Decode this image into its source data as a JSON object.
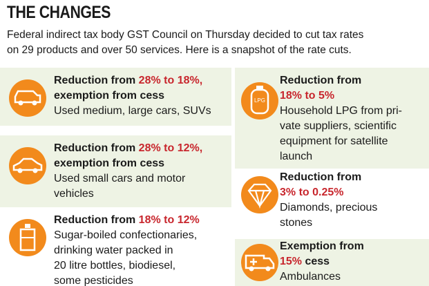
{
  "header": {
    "title": "THE CHANGES",
    "intro": [
      "Federal indirect tax body GST Council on Thursday decided to cut tax rates",
      "on 29 products and over 50 services. Here is a snapshot of the rate cuts."
    ]
  },
  "items": [
    {
      "heading": [
        [
          "Reduction from ",
          "28% to 18%,",
          ""
        ],
        [
          "exemption from cess"
        ]
      ],
      "description": [
        "Used medium, large cars, SUVs"
      ]
    },
    {
      "heading": [
        [
          "Reduction from ",
          "28% to 12%,",
          ""
        ],
        [
          "exemption from cess"
        ]
      ],
      "description": [
        "Used small cars and motor",
        "vehicles"
      ]
    },
    {
      "heading": [
        [
          "Reduction from ",
          "18% to 12%",
          ""
        ]
      ],
      "description": [
        "Sugar-boiled confectionaries,",
        "drinking water packed in",
        "20 litre bottles, biodiesel,",
        "some pesticides"
      ]
    },
    {
      "heading": [
        [
          "Reduction from"
        ],
        [
          "",
          "18% to 5%",
          ""
        ]
      ],
      "description": [
        "Household LPG from pri-",
        "vate suppliers, scientific",
        "equipment for satellite",
        "launch"
      ]
    },
    {
      "heading": [
        [
          "Reduction from"
        ],
        [
          "",
          "3% to 0.25%",
          ""
        ]
      ],
      "description": [
        "Diamonds, precious",
        "stones"
      ]
    },
    {
      "heading": [
        [
          "Exemption from"
        ],
        [
          "",
          "15%",
          " cess"
        ]
      ],
      "description": [
        "Ambulances"
      ]
    }
  ]
}
